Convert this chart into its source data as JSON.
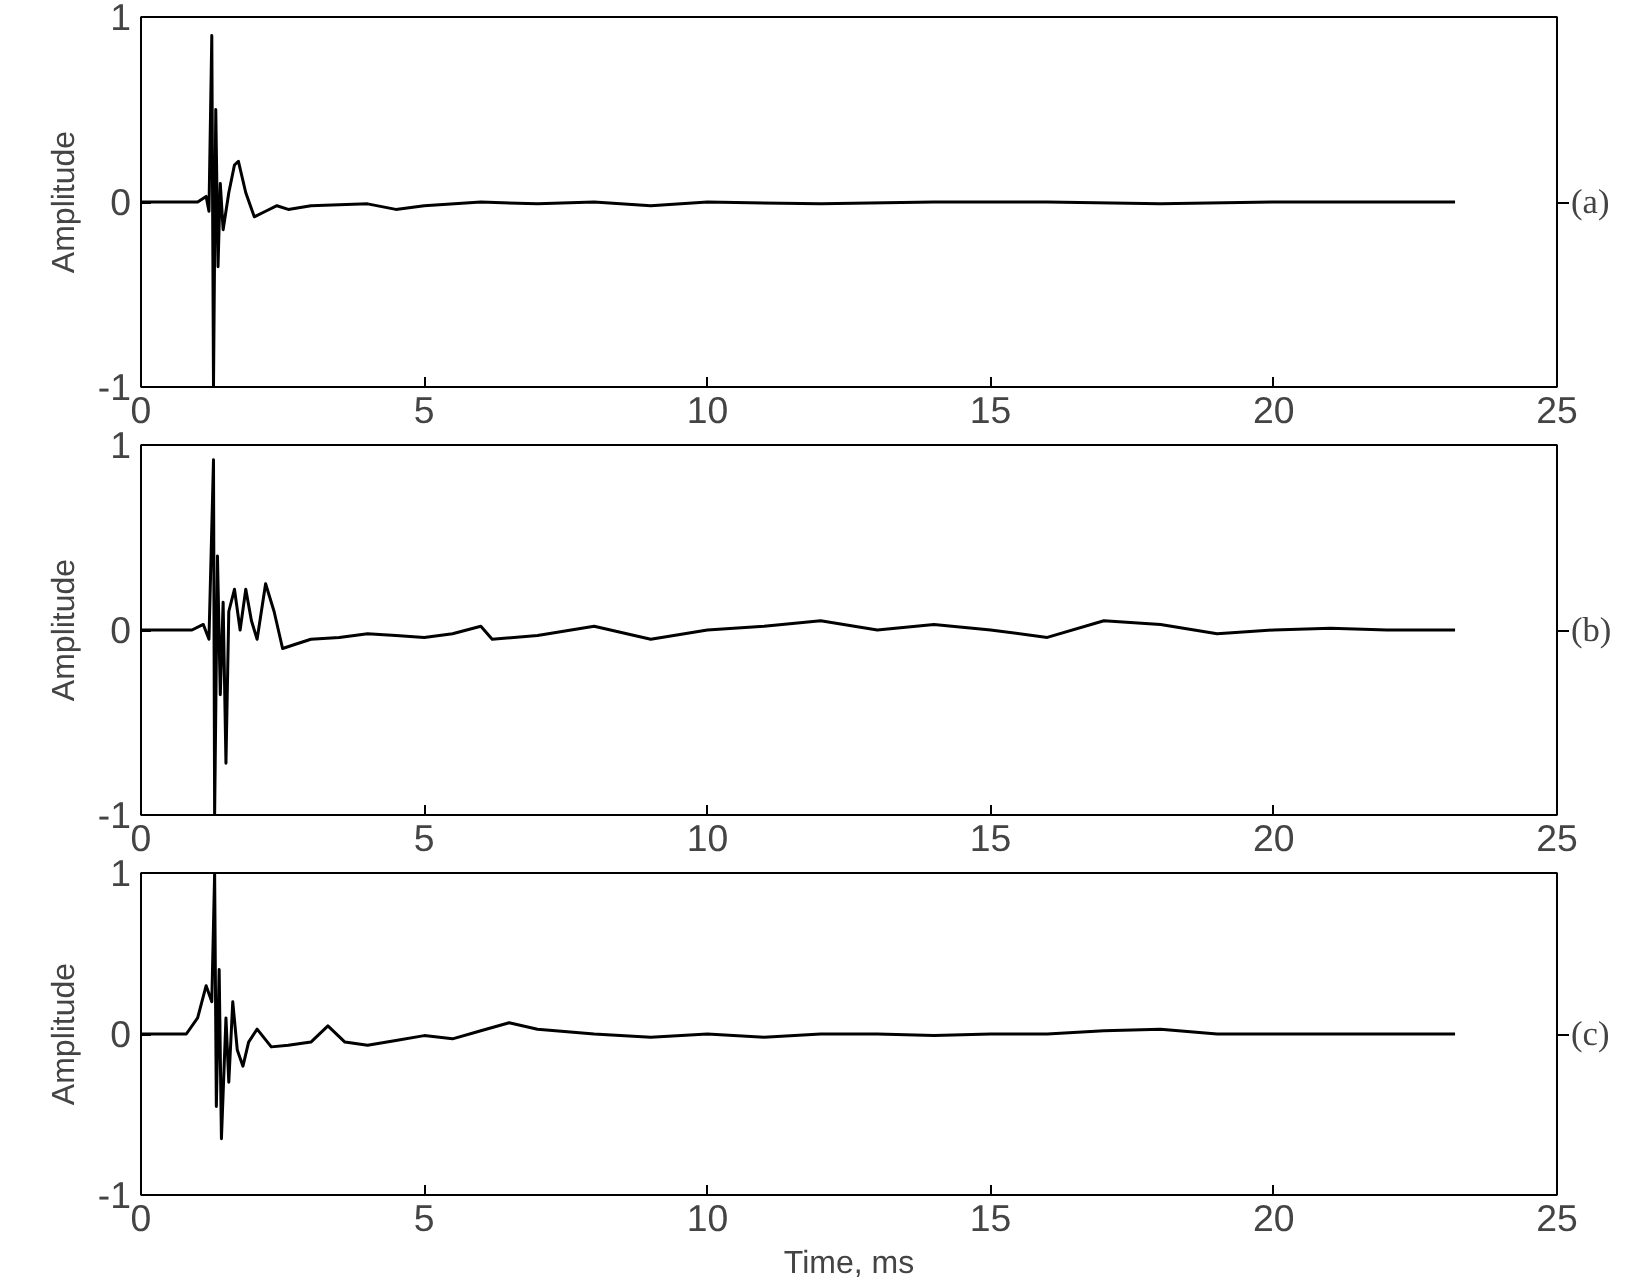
{
  "chart_data": [
    {
      "type": "line",
      "ylabel": "Amplitude",
      "annotations": [
        "(a)"
      ],
      "xlim": [
        0,
        25
      ],
      "ylim": [
        -1,
        1
      ],
      "xticks": [
        0,
        5,
        10,
        15,
        20,
        25
      ],
      "yticks": [
        -1,
        0,
        1
      ],
      "grid": false,
      "series": [
        {
          "color": "#000000",
          "x": [
            0,
            1.0,
            1.15,
            1.2,
            1.25,
            1.28,
            1.32,
            1.36,
            1.4,
            1.45,
            1.55,
            1.65,
            1.72,
            1.85,
            2.0,
            2.2,
            2.4,
            2.6,
            3,
            4,
            4.5,
            5,
            6,
            7,
            8,
            9,
            10,
            12,
            14,
            16,
            18,
            20,
            22,
            23.2
          ],
          "values": [
            0,
            0,
            0.03,
            -0.05,
            0.9,
            -1.0,
            0.5,
            -0.35,
            0.1,
            -0.15,
            0.05,
            0.2,
            0.22,
            0.05,
            -0.08,
            -0.05,
            -0.02,
            -0.04,
            -0.02,
            -0.01,
            -0.04,
            -0.02,
            0.0,
            -0.01,
            0.0,
            -0.02,
            0.0,
            -0.01,
            0.0,
            0.0,
            -0.01,
            0.0,
            0.0,
            0
          ]
        }
      ]
    },
    {
      "type": "line",
      "ylabel": "Amplitude",
      "annotations": [
        "(b)"
      ],
      "xlim": [
        0,
        25
      ],
      "ylim": [
        -1,
        1
      ],
      "xticks": [
        0,
        5,
        10,
        15,
        20,
        25
      ],
      "yticks": [
        -1,
        0,
        1
      ],
      "grid": false,
      "series": [
        {
          "color": "#000000",
          "x": [
            0,
            0.9,
            1.1,
            1.2,
            1.28,
            1.3,
            1.35,
            1.4,
            1.45,
            1.5,
            1.55,
            1.65,
            1.75,
            1.85,
            1.95,
            2.05,
            2.2,
            2.35,
            2.5,
            2.7,
            3,
            3.5,
            4,
            4.5,
            5,
            5.5,
            6,
            6.2,
            7,
            8,
            9,
            10,
            11,
            12,
            13,
            14,
            15,
            16,
            17,
            18,
            19,
            20,
            21,
            22,
            23.2
          ],
          "values": [
            0,
            0,
            0.03,
            -0.05,
            0.92,
            -1.0,
            0.4,
            -0.35,
            0.15,
            -0.72,
            0.1,
            0.22,
            0.0,
            0.22,
            0.05,
            -0.05,
            0.25,
            0.1,
            -0.1,
            -0.08,
            -0.05,
            -0.04,
            -0.02,
            -0.03,
            -0.04,
            -0.02,
            0.02,
            -0.05,
            -0.03,
            0.02,
            -0.05,
            0.0,
            0.02,
            0.05,
            0.0,
            0.03,
            0.0,
            -0.04,
            0.05,
            0.03,
            -0.02,
            0.0,
            0.01,
            0.0,
            0
          ]
        }
      ]
    },
    {
      "type": "line",
      "ylabel": "Amplitude",
      "xlabel": "Time, ms",
      "annotations": [
        "(c)"
      ],
      "xlim": [
        0,
        25
      ],
      "ylim": [
        -1,
        1
      ],
      "xticks": [
        0,
        5,
        10,
        15,
        20,
        25
      ],
      "yticks": [
        -1,
        0,
        1
      ],
      "grid": false,
      "series": [
        {
          "color": "#000000",
          "x": [
            0,
            0.8,
            1.0,
            1.15,
            1.25,
            1.3,
            1.33,
            1.38,
            1.42,
            1.5,
            1.55,
            1.62,
            1.7,
            1.8,
            1.9,
            2.05,
            2.3,
            2.6,
            3,
            3.3,
            3.6,
            4,
            4.5,
            5,
            5.5,
            6,
            6.5,
            7,
            8,
            9,
            10,
            11,
            12,
            13,
            14,
            15,
            16,
            17,
            18,
            19,
            20,
            21,
            22,
            23.2
          ],
          "values": [
            0,
            0,
            0.1,
            0.3,
            0.2,
            1.0,
            -0.45,
            0.4,
            -0.65,
            0.1,
            -0.3,
            0.2,
            -0.1,
            -0.2,
            -0.05,
            0.03,
            -0.08,
            -0.07,
            -0.05,
            0.05,
            -0.05,
            -0.07,
            -0.04,
            -0.01,
            -0.03,
            0.02,
            0.07,
            0.03,
            0.0,
            -0.02,
            0.0,
            -0.02,
            0.0,
            0.0,
            -0.01,
            0.0,
            0.0,
            0.02,
            0.03,
            0.0,
            0.0,
            0.0,
            0.0,
            0
          ]
        }
      ]
    }
  ]
}
